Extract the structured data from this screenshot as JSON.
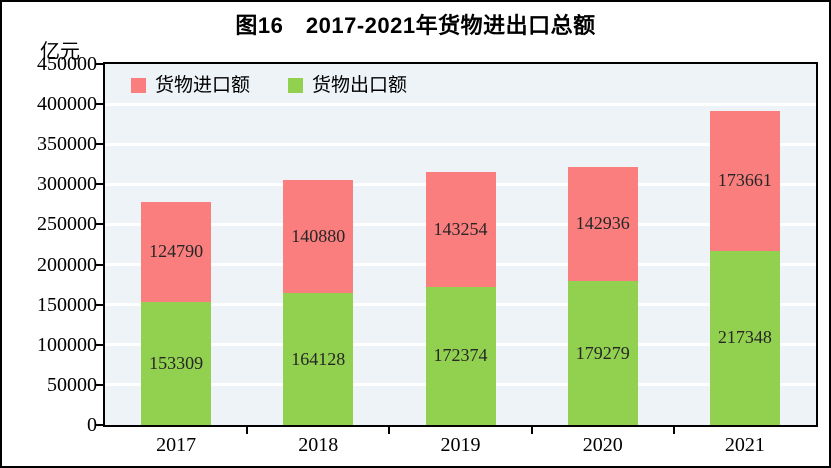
{
  "figure": {
    "title": "图16　2017-2021年货物进出口总额",
    "unit_label": "亿元"
  },
  "legend": [
    {
      "label": "货物进口额",
      "color": "#FA7E7E"
    },
    {
      "label": "货物出口额",
      "color": "#92D050"
    }
  ],
  "colors": {
    "import_bar": "#FA7E7E",
    "export_bar": "#92D050",
    "plot_background": "#EDF3F7",
    "gridline": "#FFFFFF",
    "axis": "#000000"
  },
  "chart_data": {
    "type": "bar",
    "stacked": true,
    "title": "图16　2017-2021年货物进出口总额",
    "ylabel": "亿元",
    "categories": [
      "2017",
      "2018",
      "2019",
      "2020",
      "2021"
    ],
    "series": [
      {
        "name": "货物出口额",
        "color": "#92D050",
        "values": [
          153309,
          164128,
          172374,
          179279,
          217348
        ]
      },
      {
        "name": "货物进口额",
        "color": "#FA7E7E",
        "values": [
          124790,
          140880,
          143254,
          142936,
          173661
        ]
      }
    ],
    "ylim": [
      0,
      450000
    ],
    "yticks": [
      0,
      50000,
      100000,
      150000,
      200000,
      250000,
      300000,
      350000,
      400000,
      450000
    ],
    "grid": true,
    "legend_position": "top-left-inside",
    "value_labels": "inside-segment-centered"
  }
}
